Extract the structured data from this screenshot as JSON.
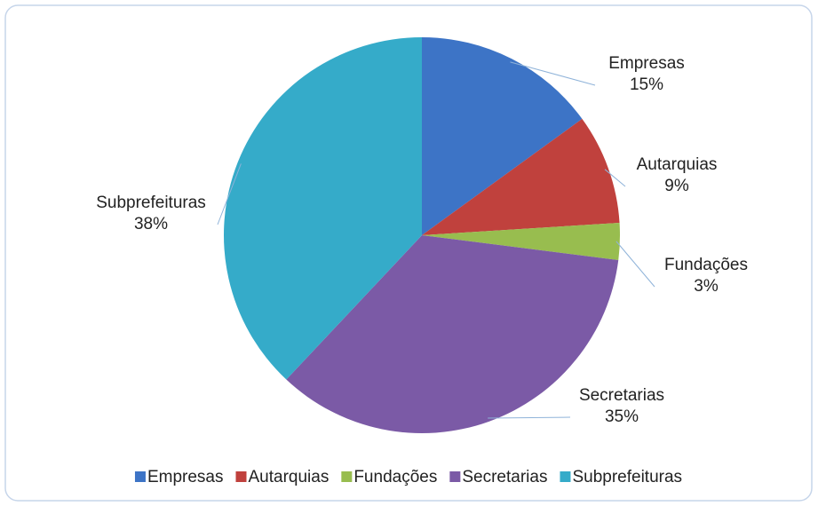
{
  "chart_data": {
    "type": "pie",
    "categories": [
      "Empresas",
      "Autarquias",
      "Fundações",
      "Secretarias",
      "Subprefeituras"
    ],
    "values": [
      15,
      9,
      3,
      35,
      38
    ],
    "value_labels": [
      "15%",
      "9%",
      "3%",
      "35%",
      "38%"
    ],
    "colors": [
      "#3d74c6",
      "#c0413d",
      "#98bd4f",
      "#7b5aa6",
      "#35abc9"
    ],
    "legend": "bottom"
  }
}
